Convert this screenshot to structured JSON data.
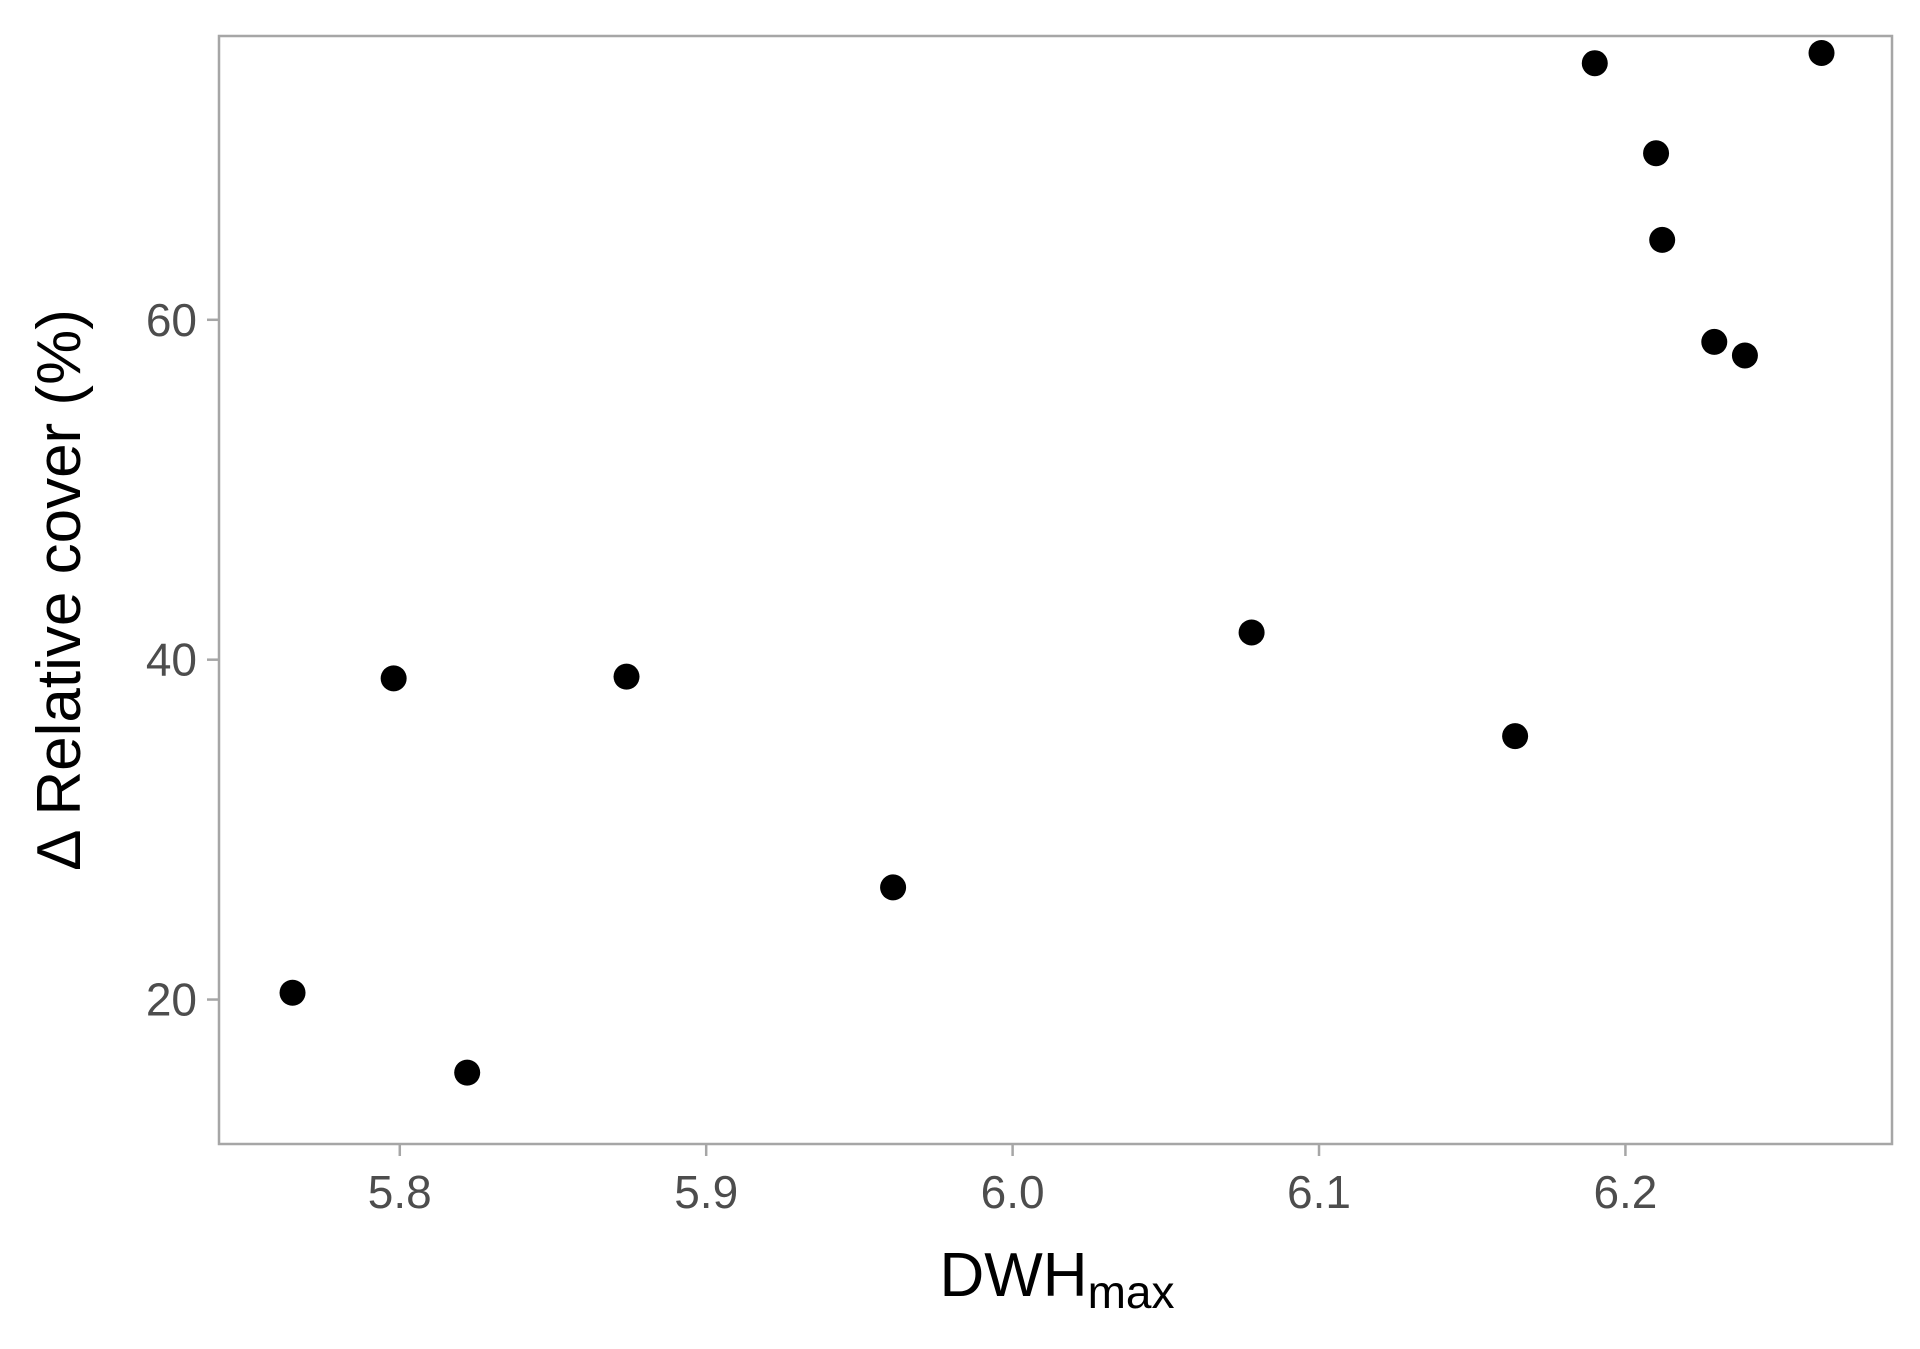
{
  "chart_data": {
    "type": "scatter",
    "xlabel": "DWH",
    "xlabel_subscript": "max",
    "ylabel": "Δ Relative cover (%)",
    "xlim": [
      5.741,
      6.287
    ],
    "ylim": [
      11.5,
      76.7
    ],
    "xticks": [
      5.8,
      5.9,
      6.0,
      6.1,
      6.2
    ],
    "xtick_labels": [
      "5.8",
      "5.9",
      "6.0",
      "6.1",
      "6.2"
    ],
    "yticks": [
      20,
      40,
      60
    ],
    "ytick_labels": [
      "20",
      "40",
      "60"
    ],
    "grid": false,
    "legend": "none",
    "point_color": "#000000",
    "frame_color": "#a6a6a6",
    "series": [
      {
        "points": [
          {
            "x": 5.765,
            "y": 20.4
          },
          {
            "x": 5.798,
            "y": 38.9
          },
          {
            "x": 5.822,
            "y": 15.7
          },
          {
            "x": 5.874,
            "y": 39.0
          },
          {
            "x": 5.961,
            "y": 26.6
          },
          {
            "x": 6.078,
            "y": 41.6
          },
          {
            "x": 6.164,
            "y": 35.5
          },
          {
            "x": 6.19,
            "y": 75.1
          },
          {
            "x": 6.21,
            "y": 69.8
          },
          {
            "x": 6.212,
            "y": 64.7
          },
          {
            "x": 6.229,
            "y": 58.7
          },
          {
            "x": 6.239,
            "y": 57.9
          },
          {
            "x": 6.264,
            "y": 75.7
          }
        ]
      }
    ]
  }
}
